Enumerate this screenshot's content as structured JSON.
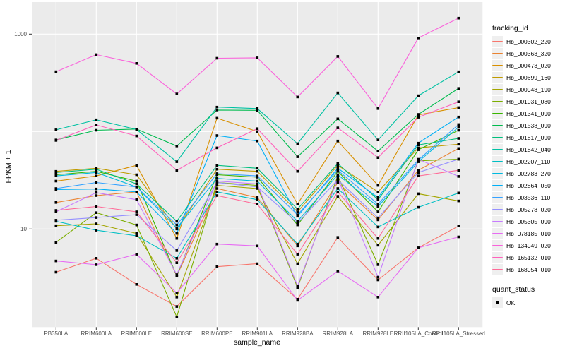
{
  "legend": {
    "tracking_title": "tracking_id",
    "quant_title": "quant_status",
    "quant_items": [
      {
        "label": "OK",
        "marker": "black-square"
      }
    ]
  },
  "chart_data": {
    "type": "line",
    "title": "",
    "xlabel": "sample_name",
    "ylabel": "FPKM + 1",
    "y_scale": "log10",
    "ylim": [
      0.95,
      2000
    ],
    "grid": "major-white-on-grey",
    "legend_position": "right",
    "panel_background": "#EBEBEB",
    "gridline_color": "#FFFFFF",
    "point_color": "#000000",
    "point_shape": "square",
    "axis_text_color": "#4D4D4D",
    "y_ticks": [
      {
        "value": 1000,
        "label": "1000"
      },
      {
        "value": 10,
        "label": "10"
      }
    ],
    "y_gridlines": [
      10,
      100,
      1000
    ],
    "x_categories": [
      "PB350LA",
      "RRIM600LA",
      "RRIM600LE",
      "RRIM600SE",
      "RRIM600PE",
      "RRIM901LA",
      "RRIM928BA",
      "RRIM928LA",
      "RRIM928LE",
      "RRII105LA_Control",
      "RRII105LA_Stressed"
    ],
    "series": [
      {
        "name": "Hb_000302_220",
        "color": "#F8766D",
        "values": [
          3.6,
          5.0,
          2.7,
          1.6,
          4.1,
          4.4,
          1.9,
          8.2,
          3.0,
          6.4,
          10.7
        ]
      },
      {
        "name": "Hb_000363_320",
        "color": "#EA8331",
        "values": [
          18.7,
          22,
          24,
          3.3,
          26,
          21,
          6.7,
          30,
          12.4,
          40,
          67
        ]
      },
      {
        "name": "Hb_000473_020",
        "color": "#D89000",
        "values": [
          31,
          35,
          45,
          8.0,
          137,
          100,
          18,
          80,
          28,
          148,
          176
        ]
      },
      {
        "name": "Hb_000699_160",
        "color": "#C09B00",
        "values": [
          39,
          42,
          36,
          10,
          41,
          39,
          15,
          45,
          24,
          68,
          74
        ]
      },
      {
        "name": "Hb_000948_190",
        "color": "#A3A500",
        "values": [
          10.8,
          11.3,
          9.0,
          2.0,
          28,
          26,
          4.4,
          21.6,
          6.8,
          23,
          19.4
        ]
      },
      {
        "name": "Hb_001031_080",
        "color": "#7CAE00",
        "values": [
          7.3,
          14.7,
          11,
          1.25,
          30,
          28,
          2.5,
          35,
          4.3,
          50,
          52
        ]
      },
      {
        "name": "Hb_001341_090",
        "color": "#39B600",
        "values": [
          36,
          39,
          31,
          3.3,
          36,
          34,
          11,
          39,
          15,
          65,
          103
        ]
      },
      {
        "name": "Hb_001538_090",
        "color": "#00BB4E",
        "values": [
          82,
          103,
          106,
          71,
          166,
          165,
          55,
          135,
          63,
          150,
          277
        ]
      },
      {
        "name": "Hb_001817_090",
        "color": "#00BF7D",
        "values": [
          38,
          41,
          29,
          12,
          45,
          42,
          16,
          47,
          20,
          73,
          85
        ]
      },
      {
        "name": "Hb_001842_040",
        "color": "#00C1A3",
        "values": [
          104,
          132,
          105,
          49,
          178,
          172,
          75,
          249,
          82,
          233,
          410
        ]
      },
      {
        "name": "Hb_002207_110",
        "color": "#00BFC4",
        "values": [
          12.0,
          9.7,
          8.5,
          5.0,
          24,
          20,
          7.0,
          26,
          10.5,
          16.7,
          23.4
        ]
      },
      {
        "name": "Hb_002783_270",
        "color": "#00BAE0",
        "values": [
          35,
          38,
          27,
          10.2,
          33,
          31,
          12,
          36,
          17,
          49,
          111
        ]
      },
      {
        "name": "Hb_002864_050",
        "color": "#00B0F6",
        "values": [
          25.4,
          25.7,
          24,
          9.0,
          91,
          80,
          13.5,
          42,
          21,
          76,
          141
        ]
      },
      {
        "name": "Hb_003536_110",
        "color": "#35A2FF",
        "values": [
          26,
          30,
          27,
          11,
          37,
          35,
          14,
          40,
          18,
          51,
          118
        ]
      },
      {
        "name": "Hb_005278_020",
        "color": "#9590FF",
        "values": [
          12.3,
          13.1,
          14,
          6.0,
          30,
          27,
          11.5,
          32,
          13,
          38,
          52
        ]
      },
      {
        "name": "Hb_005305_090",
        "color": "#C77CFF",
        "values": [
          15,
          23.6,
          20,
          3.4,
          31,
          29,
          2.6,
          33,
          3.2,
          52,
          34.6
        ]
      },
      {
        "name": "Hb_078185_010",
        "color": "#E76BF3",
        "values": [
          4.7,
          4.3,
          5.5,
          2.2,
          7.0,
          6.7,
          1.85,
          3.7,
          2.0,
          6.4,
          8.3
        ]
      },
      {
        "name": "Hb_134949_020",
        "color": "#FA62DB",
        "values": [
          411,
          615,
          500,
          243,
          565,
          571,
          226,
          590,
          172,
          912,
          1459
        ]
      },
      {
        "name": "Hb_165132_010",
        "color": "#FF62BC",
        "values": [
          81,
          117,
          90,
          40,
          68,
          107,
          39,
          109,
          54,
          140,
          202
        ]
      },
      {
        "name": "Hb_168054_010",
        "color": "#FF6A98",
        "values": [
          15.5,
          17,
          15,
          4.5,
          22,
          18,
          5.5,
          24,
          8.0,
          35,
          40
        ]
      }
    ]
  }
}
